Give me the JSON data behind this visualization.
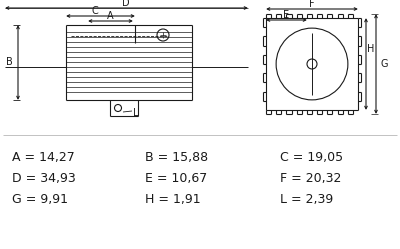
{
  "bg_color": "#ffffff",
  "line_color": "#1a1a1a",
  "dim_rows": [
    [
      [
        "A",
        "14,27"
      ],
      [
        "B",
        "15,88"
      ],
      [
        "C",
        "19,05"
      ]
    ],
    [
      [
        "D",
        "34,93"
      ],
      [
        "E",
        "10,67"
      ],
      [
        "F",
        "20,32"
      ]
    ],
    [
      [
        "G",
        "9,91"
      ],
      [
        "H",
        "1,91"
      ],
      [
        "L",
        "2,39"
      ]
    ]
  ],
  "text_fontsize": 9.0
}
